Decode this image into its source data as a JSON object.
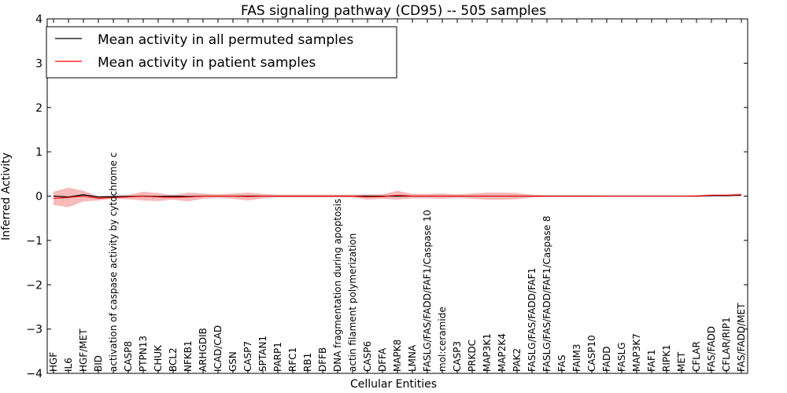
{
  "chart_data": {
    "type": "line",
    "title": "FAS signaling pathway (CD95) -- 505 samples",
    "xlabel": "Cellular Entities",
    "ylabel": "Inferred Activity",
    "ylim": [
      -4,
      4
    ],
    "yticks": [
      -4,
      -3,
      -2,
      -1,
      0,
      1,
      2,
      3,
      4
    ],
    "grid": false,
    "legend_position": "top-left",
    "categories": [
      "HGF",
      "IL6",
      "HGF/MET",
      "BID",
      "activation of caspase activity by cytochrome c",
      "CASP8",
      "PTPN13",
      "CHUK",
      "BCL2",
      "NFKB1",
      "ARHGDIB",
      "ICAD/CAD",
      "GSN",
      "CASP7",
      "SPTAN1",
      "PARP1",
      "RFC1",
      "RB1",
      "DFFB",
      "DNA fragmentation during apoptosis",
      "actin filament polymerization",
      "CASP6",
      "DFFA",
      "MAPK8",
      "LMNA",
      "FASLG/FAS/FADD/FAF1/Caspase 10",
      "mol:ceramide",
      "CASP3",
      "PRKDC",
      "MAP3K1",
      "MAP2K4",
      "PAK2",
      "FASLG/FAS/FADD/FAF1",
      "FASLG/FAS/FADD/FAF1/Caspase 8",
      "FAS",
      "FAIM3",
      "CASP10",
      "FADD",
      "FASLG",
      "MAP3K7",
      "FAF1",
      "RIPK1",
      "MET",
      "CFLAR",
      "FAS/FADD",
      "CFLAR/RIP1",
      "FAS/FADD/MET"
    ],
    "series": [
      {
        "name": "Mean activity in all permuted samples",
        "color": "#000000",
        "values": [
          0.0,
          -0.02,
          0.03,
          -0.02,
          -0.01,
          -0.01,
          0.0,
          -0.01,
          0.0,
          -0.01,
          0.0,
          0.0,
          0.0,
          0.0,
          0.0,
          0.0,
          0.0,
          0.0,
          0.0,
          0.0,
          0.0,
          0.0,
          0.0,
          0.0,
          0.0,
          0.0,
          0.0,
          0.0,
          0.0,
          0.0,
          0.0,
          0.0,
          0.0,
          0.0,
          0.0,
          0.0,
          0.0,
          0.0,
          0.0,
          0.0,
          0.0,
          0.0,
          0.0,
          0.0,
          0.01,
          0.01,
          0.02
        ]
      },
      {
        "name": "Mean activity in patient samples",
        "color": "#ff0000",
        "band_color": "#f08080",
        "values": [
          -0.05,
          -0.03,
          0.0,
          -0.05,
          -0.03,
          -0.02,
          0.0,
          -0.02,
          -0.03,
          -0.02,
          0.0,
          0.0,
          0.0,
          -0.01,
          0.0,
          0.0,
          0.0,
          0.0,
          0.0,
          0.0,
          0.0,
          -0.02,
          -0.01,
          0.02,
          0.0,
          0.0,
          0.0,
          0.0,
          0.0,
          0.0,
          0.0,
          0.0,
          0.0,
          0.0,
          0.0,
          0.0,
          0.0,
          0.0,
          0.0,
          0.0,
          0.0,
          0.0,
          0.0,
          0.0,
          0.02,
          0.02,
          0.03
        ],
        "band_half_width": [
          0.15,
          0.22,
          0.12,
          0.05,
          0.03,
          0.05,
          0.1,
          0.09,
          0.05,
          0.1,
          0.06,
          0.04,
          0.06,
          0.09,
          0.05,
          0.03,
          0.03,
          0.03,
          0.03,
          0.03,
          0.03,
          0.06,
          0.05,
          0.1,
          0.05,
          0.05,
          0.06,
          0.04,
          0.06,
          0.08,
          0.08,
          0.07,
          0.03,
          0.02,
          0.02,
          0.02,
          0.02,
          0.01,
          0.01,
          0.01,
          0.01,
          0.01,
          0.01,
          0.02,
          0.02,
          0.02,
          0.03
        ]
      }
    ]
  }
}
